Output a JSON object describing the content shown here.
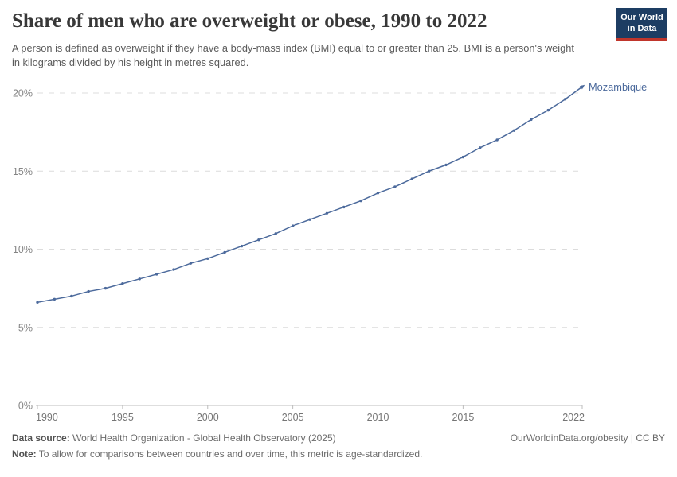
{
  "header": {
    "title": "Share of men who are overweight or obese, 1990 to 2022",
    "subtitle": "A person is defined as overweight if they have a body-mass index (BMI) equal to or greater than 25. BMI is a person's weight in kilograms divided by his height in metres squared.",
    "logo": {
      "line1": "Our World",
      "line2": "in Data",
      "bg_color": "#1d3d63",
      "accent_color": "#c0352b"
    }
  },
  "chart_data": {
    "type": "line",
    "title": "Share of men who are overweight or obese, 1990 to 2022",
    "xlabel": "",
    "ylabel": "",
    "xlim": [
      1990,
      2022
    ],
    "ylim": [
      0,
      20
    ],
    "grid": "horizontal dashed",
    "legend_position": "end-of-line label",
    "x_ticks": [
      1990,
      1995,
      2000,
      2005,
      2010,
      2015,
      2022
    ],
    "y_ticks": [
      0,
      5,
      10,
      15,
      20
    ],
    "y_tick_suffix": "%",
    "x": [
      1990,
      1991,
      1992,
      1993,
      1994,
      1995,
      1996,
      1997,
      1998,
      1999,
      2000,
      2001,
      2002,
      2003,
      2004,
      2005,
      2006,
      2007,
      2008,
      2009,
      2010,
      2011,
      2012,
      2013,
      2014,
      2015,
      2016,
      2017,
      2018,
      2019,
      2020,
      2021,
      2022
    ],
    "series": [
      {
        "name": "Mozambique",
        "color": "#4c6a9c",
        "values": [
          6.6,
          6.8,
          7.0,
          7.3,
          7.5,
          7.8,
          8.1,
          8.4,
          8.7,
          9.1,
          9.4,
          9.8,
          10.2,
          10.6,
          11.0,
          11.5,
          11.9,
          12.3,
          12.7,
          13.1,
          13.6,
          14.0,
          14.5,
          15.0,
          15.4,
          15.9,
          16.5,
          17.0,
          17.6,
          18.3,
          18.9,
          19.6,
          20.4
        ]
      }
    ],
    "colors": {
      "grid": "#dcdcdc",
      "axis": "#bcbcbc",
      "y_tick_label": "#858585",
      "x_tick_label": "#757575"
    }
  },
  "footer": {
    "datasource_label": "Data source:",
    "datasource_value": " World Health Organization - Global Health Observatory (2025)",
    "note_label": "Note:",
    "note_value": " To allow for comparisons between countries and over time, this metric is age-standardized.",
    "link": "OurWorldinData.org/obesity | CC BY"
  }
}
